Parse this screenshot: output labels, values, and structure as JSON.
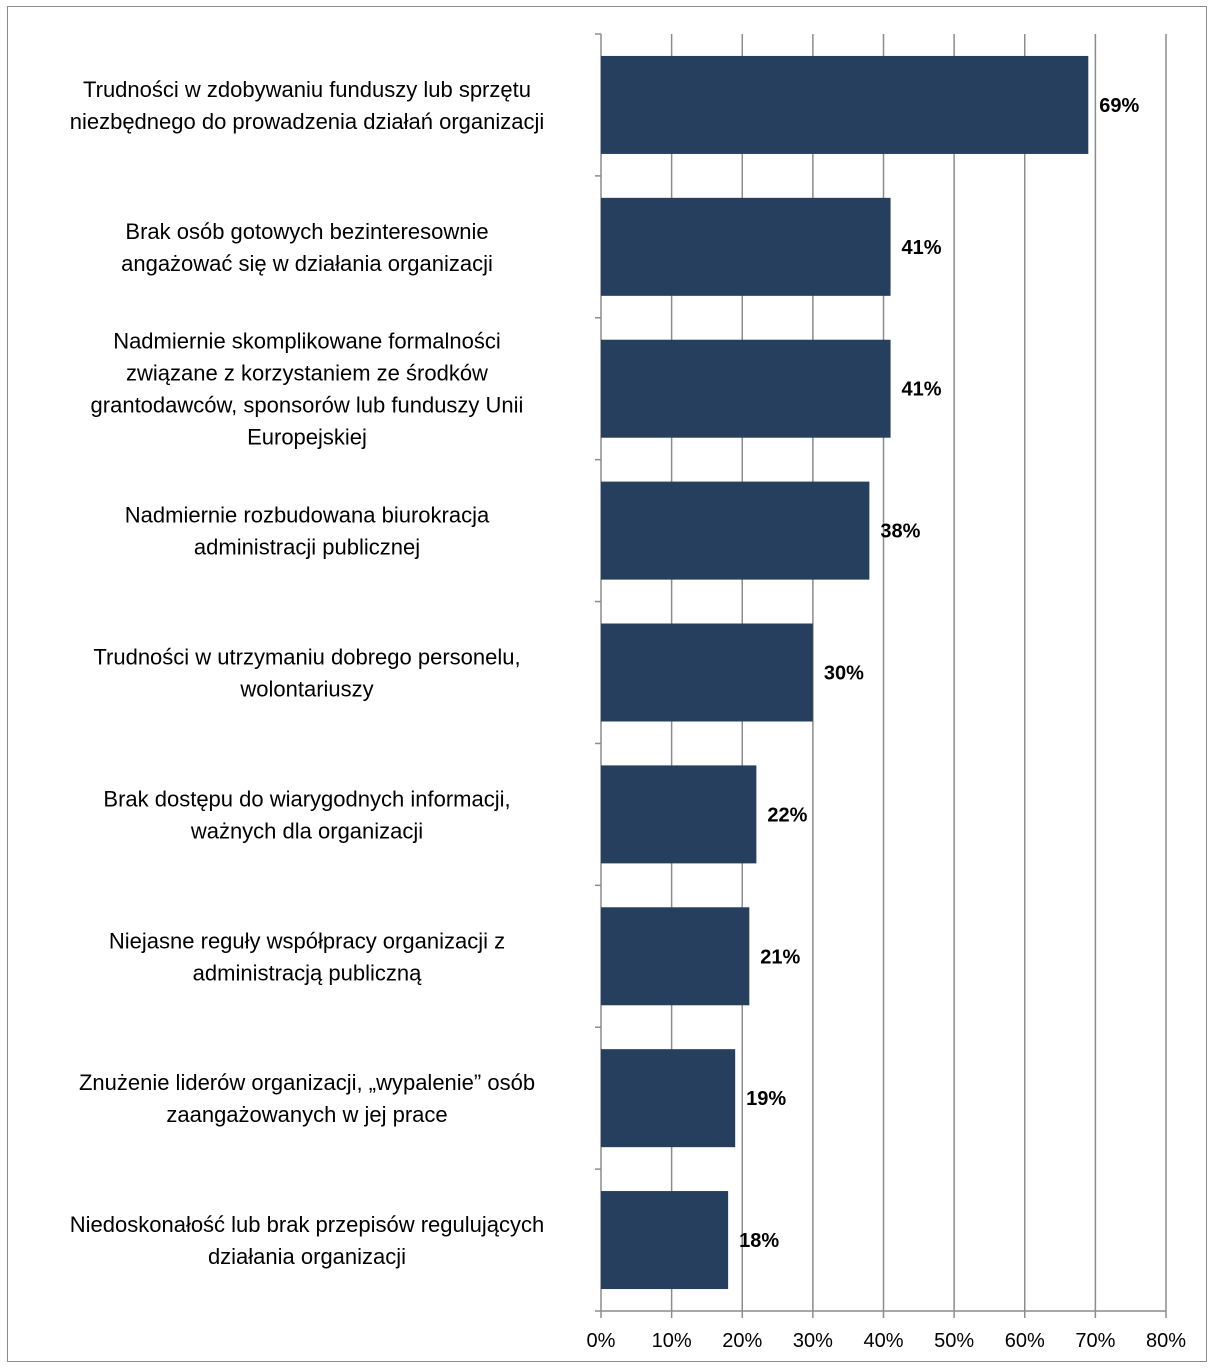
{
  "chart_data": {
    "type": "bar",
    "orientation": "horizontal",
    "title": "",
    "xlabel": "",
    "ylabel": "",
    "categories": [
      [
        "Trudności w zdobywaniu funduszy lub sprzętu",
        "niezbędnego do prowadzenia działań organizacji"
      ],
      [
        "Brak osób gotowych bezinteresownie",
        "angażować się w działania organizacji"
      ],
      [
        "Nadmiernie skomplikowane formalności",
        "związane z korzystaniem ze środków",
        "grantodawców, sponsorów lub funduszy Unii",
        "Europejskiej"
      ],
      [
        "Nadmiernie rozbudowana biurokracja",
        "administracji publicznej"
      ],
      [
        "Trudności w utrzymaniu dobrego personelu,",
        "wolontariuszy"
      ],
      [
        "Brak dostępu do wiarygodnych informacji,",
        "ważnych dla organizacji"
      ],
      [
        "Niejasne reguły współpracy organizacji z",
        "administracją publiczną"
      ],
      [
        "Znużenie liderów organizacji, „wypalenie” osób",
        "zaangażowanych w jej prace"
      ],
      [
        "Niedoskonałość lub brak przepisów regulujących",
        "działania organizacji"
      ]
    ],
    "values": [
      69,
      41,
      41,
      38,
      30,
      22,
      21,
      19,
      18
    ],
    "data_labels": [
      "69%",
      "41%",
      "41%",
      "38%",
      "30%",
      "22%",
      "21%",
      "19%",
      "18%"
    ],
    "xlim": [
      0,
      80
    ],
    "x_ticks": [
      0,
      10,
      20,
      30,
      40,
      50,
      60,
      70,
      80
    ],
    "x_tick_labels": [
      "0%",
      "10%",
      "20%",
      "30%",
      "40%",
      "50%",
      "60%",
      "70%",
      "80%"
    ],
    "grid": "vertical",
    "legend": "none",
    "colors": {
      "bar": "#263f5e",
      "grid": "#8c8c8c",
      "axis": "#8c8c8c",
      "frame": "#8c8c8c"
    }
  }
}
